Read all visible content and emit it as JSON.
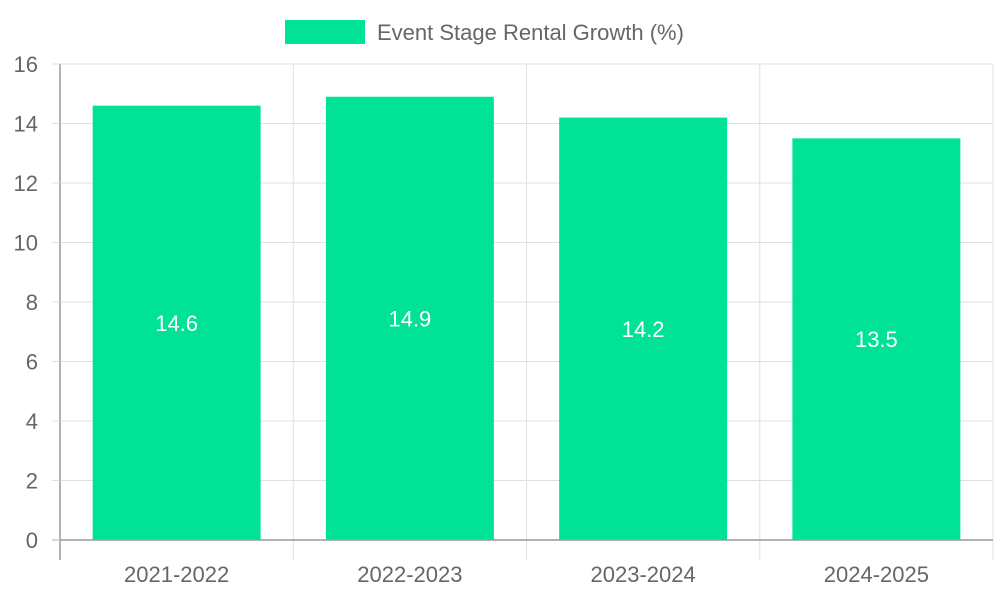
{
  "chart_data": {
    "type": "bar",
    "categories": [
      "2021-2022",
      "2022-2023",
      "2023-2024",
      "2024-2025"
    ],
    "series": [
      {
        "name": "Event Stage Rental Growth (%)",
        "values": [
          14.6,
          14.9,
          14.2,
          13.5
        ]
      }
    ],
    "ylim": [
      0,
      16
    ],
    "yticks": [
      0,
      2,
      4,
      6,
      8,
      10,
      12,
      14,
      16
    ],
    "grid": true,
    "legend_position": "top-center",
    "data_labels": [
      "14.6",
      "14.9",
      "14.2",
      "13.5"
    ],
    "colors": {
      "bar": "#00e396",
      "grid": "#e0e0e0",
      "axis": "#999999",
      "text": "#666666",
      "label": "#ffffff"
    }
  }
}
